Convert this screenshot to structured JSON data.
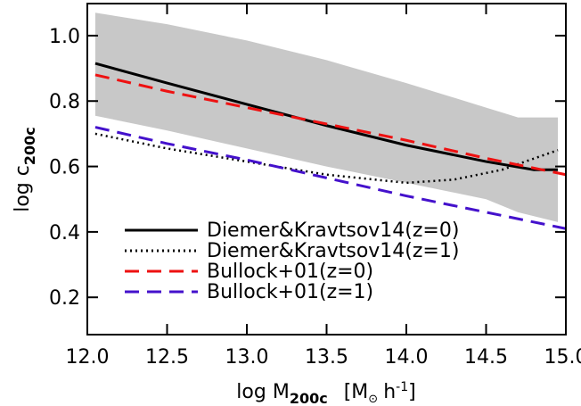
{
  "chart_data": {
    "type": "line",
    "ylabel": {
      "main": "log c",
      "sub": "200c"
    },
    "xlabel": {
      "main": "log M",
      "sub": "200c",
      "unit_open": "[M",
      "sun": "⊙",
      "h": "h",
      "exp": "-1",
      "unit_close": "]"
    },
    "xlim": [
      12.0,
      15.0
    ],
    "ylim": [
      0.086,
      1.098
    ],
    "xticks": [
      {
        "value": 12.0,
        "label": "12.0"
      },
      {
        "value": 12.5,
        "label": "12.5"
      },
      {
        "value": 13.0,
        "label": "13.0"
      },
      {
        "value": 13.5,
        "label": "13.5"
      },
      {
        "value": 14.0,
        "label": "14.0"
      },
      {
        "value": 14.5,
        "label": "14.5"
      },
      {
        "value": 15.0,
        "label": "15.0"
      }
    ],
    "yticks": [
      0.2,
      0.4,
      0.6,
      0.8,
      {
        "value": 1.0,
        "label": "1.0"
      }
    ],
    "band": {
      "color": "#c8c8c8",
      "x": [
        12.05,
        12.5,
        13.0,
        13.5,
        14.0,
        14.5,
        14.7,
        14.95
      ],
      "upper": [
        1.07,
        1.035,
        0.985,
        0.925,
        0.855,
        0.78,
        0.75,
        0.75
      ],
      "lower": [
        0.755,
        0.71,
        0.655,
        0.6,
        0.55,
        0.5,
        0.46,
        0.43
      ]
    },
    "legend": "lower left",
    "series": [
      {
        "name": "Diemer&Kravtsov14(z=0)",
        "color": "#000000",
        "dash": "solid",
        "x": [
          12.05,
          12.5,
          13.0,
          13.5,
          14.0,
          14.5,
          14.8,
          14.95
        ],
        "values": [
          0.915,
          0.855,
          0.79,
          0.725,
          0.665,
          0.615,
          0.59,
          0.59
        ]
      },
      {
        "name": "Diemer&Kravtsov14(z=1)",
        "color": "#000000",
        "dash": "dotted",
        "x": [
          12.05,
          12.5,
          13.0,
          13.5,
          14.0,
          14.3,
          14.6,
          14.95
        ],
        "values": [
          0.7,
          0.655,
          0.615,
          0.575,
          0.55,
          0.56,
          0.59,
          0.65
        ]
      },
      {
        "name": "Bullock+01(z=0)",
        "color": "#ee1111",
        "dash": "dashed",
        "x": [
          12.05,
          12.5,
          13.0,
          13.5,
          14.0,
          14.5,
          15.0
        ],
        "values": [
          0.88,
          0.83,
          0.78,
          0.73,
          0.68,
          0.625,
          0.575
        ]
      },
      {
        "name": "Bullock+01(z=1)",
        "color": "#4411cc",
        "dash": "dashed",
        "x": [
          12.05,
          12.5,
          13.0,
          13.5,
          14.0,
          14.5,
          15.0
        ],
        "values": [
          0.72,
          0.67,
          0.62,
          0.565,
          0.51,
          0.46,
          0.41
        ]
      }
    ]
  }
}
